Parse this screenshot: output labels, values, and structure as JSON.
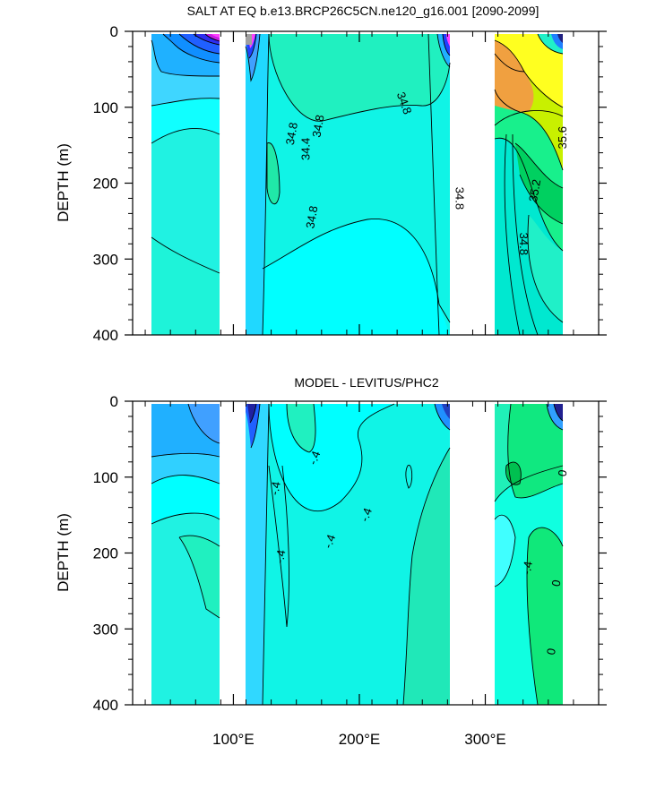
{
  "chart_data": [
    {
      "type": "contour",
      "title": "SALT AT EQ b.e13.BRCP26C5CN.ne120_g16.001 [2090-2099]",
      "ylabel": "DEPTH (m)",
      "xlabel": "",
      "xlim": [
        20,
        390
      ],
      "ylim": [
        0,
        400
      ],
      "y_inverted": true,
      "yticks": [
        0,
        100,
        200,
        300,
        400
      ],
      "ytick_labels": [
        "0",
        "100",
        "200",
        "300",
        "400"
      ],
      "xticks": [
        100,
        200,
        300
      ],
      "xtick_labels": [],
      "data_bands": [
        [
          44,
          97
        ],
        [
          118,
          278
        ],
        [
          313,
          370
        ]
      ],
      "land_gaps": [
        [
          97,
          118
        ],
        [
          278,
          313
        ]
      ],
      "contour_labels": [
        {
          "text": "34.8",
          "x": 235,
          "y": 95,
          "rot": 70
        },
        {
          "text": "34.8",
          "x": 147,
          "y": 135,
          "rot": -80
        },
        {
          "text": "34.8",
          "x": 168,
          "y": 125,
          "rot": -80
        },
        {
          "text": "34.4",
          "x": 158,
          "y": 155,
          "rot": -90
        },
        {
          "text": "34.8",
          "x": 163,
          "y": 245,
          "rot": -80
        },
        {
          "text": "34.8",
          "x": 279,
          "y": 220,
          "rot": 90
        },
        {
          "text": "35.6",
          "x": 362,
          "y": 140,
          "rot": -90
        },
        {
          "text": "35.2",
          "x": 340,
          "y": 210,
          "rot": -80
        },
        {
          "text": "34.8",
          "x": 330,
          "y": 280,
          "rot": 90
        }
      ]
    },
    {
      "type": "contour",
      "title": "MODEL - LEVITUS/PHC2",
      "ylabel": "DEPTH (m)",
      "xlabel": "",
      "xlim": [
        20,
        390
      ],
      "ylim": [
        0,
        400
      ],
      "y_inverted": true,
      "yticks": [
        0,
        100,
        200,
        300,
        400
      ],
      "ytick_labels": [
        "0",
        "100",
        "200",
        "300",
        "400"
      ],
      "xticks": [
        100,
        200,
        300
      ],
      "xtick_labels": [
        "100°E",
        "200°E",
        "300°E"
      ],
      "data_bands": [
        [
          44,
          97
        ],
        [
          118,
          278
        ],
        [
          313,
          370
        ]
      ],
      "land_gaps": [
        [
          97,
          118
        ],
        [
          278,
          313
        ]
      ],
      "contour_labels": [
        {
          "text": "-.4",
          "x": 134,
          "y": 115,
          "rot": -80
        },
        {
          "text": "-.4",
          "x": 165,
          "y": 75,
          "rot": -70
        },
        {
          "text": "-.4",
          "x": 206,
          "y": 150,
          "rot": -70
        },
        {
          "text": "-.4",
          "x": 177,
          "y": 185,
          "rot": -70
        },
        {
          "text": "-.4",
          "x": 138,
          "y": 205,
          "rot": -80
        },
        {
          "text": "-.4",
          "x": 334,
          "y": 220,
          "rot": -80
        },
        {
          "text": "0",
          "x": 362,
          "y": 95,
          "rot": -80
        },
        {
          "text": "0",
          "x": 357,
          "y": 240,
          "rot": -80
        },
        {
          "text": "0",
          "x": 353,
          "y": 330,
          "rot": -80
        }
      ]
    }
  ]
}
